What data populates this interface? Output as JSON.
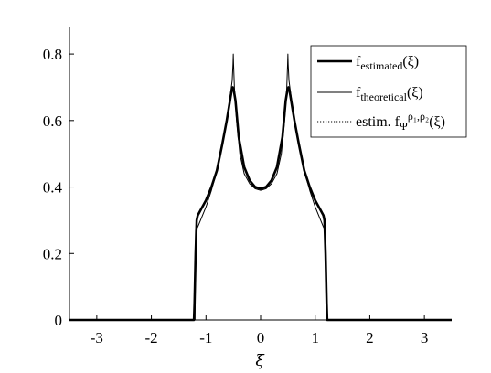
{
  "chart_data": {
    "type": "line",
    "xlabel": "ξ",
    "ylabel": "",
    "xlim": [
      -3.5,
      3.5
    ],
    "ylim": [
      0,
      0.88
    ],
    "xticks": [
      -3,
      -2,
      -1,
      0,
      1,
      2,
      3
    ],
    "xtick_labels": [
      "-3",
      "-2",
      "-1",
      "0",
      "1",
      "2",
      "3"
    ],
    "yticks": [
      0,
      0.2,
      0.4,
      0.6,
      0.8
    ],
    "ytick_labels": [
      "0",
      "0.2",
      "0.4",
      "0.6",
      "0.8"
    ],
    "grid": false,
    "legend_position": "top-right",
    "legend": {
      "estimated": {
        "main": "f",
        "sub": "estimated",
        "arg": "(ξ)"
      },
      "theoretical": {
        "main": "f",
        "sub": "theoretical",
        "arg": "(ξ)"
      },
      "estim_psi": {
        "prefix": "estim. f",
        "sub": "Ψ",
        "sup": "ρ₁,ρ₂",
        "arg": "(ξ)"
      }
    },
    "series": [
      {
        "key": "estimated",
        "style": "thick-solid",
        "x": [
          -3.5,
          -1.22,
          -1.21,
          -1.19,
          -1.17,
          -1.15,
          -1.1,
          -1.0,
          -0.9,
          -0.8,
          -0.7,
          -0.62,
          -0.56,
          -0.53,
          -0.51,
          -0.49,
          -0.46,
          -0.4,
          -0.3,
          -0.2,
          -0.1,
          0,
          0.1,
          0.2,
          0.3,
          0.4,
          0.46,
          0.49,
          0.51,
          0.53,
          0.56,
          0.62,
          0.7,
          0.8,
          0.9,
          1.0,
          1.1,
          1.15,
          1.17,
          1.19,
          1.21,
          1.22,
          3.5
        ],
        "y": [
          0,
          0,
          0.05,
          0.2,
          0.3,
          0.315,
          0.33,
          0.36,
          0.4,
          0.45,
          0.53,
          0.6,
          0.66,
          0.69,
          0.7,
          0.69,
          0.66,
          0.55,
          0.46,
          0.42,
          0.4,
          0.395,
          0.4,
          0.42,
          0.46,
          0.55,
          0.66,
          0.69,
          0.7,
          0.69,
          0.66,
          0.6,
          0.53,
          0.45,
          0.4,
          0.36,
          0.33,
          0.315,
          0.3,
          0.2,
          0.05,
          0,
          0
        ]
      },
      {
        "key": "theoretical",
        "style": "thin-solid",
        "x": [
          -3.5,
          -1.2,
          -1.19,
          -1.15,
          -1.1,
          -1.0,
          -0.9,
          -0.8,
          -0.7,
          -0.62,
          -0.56,
          -0.52,
          -0.505,
          -0.5,
          -0.495,
          -0.48,
          -0.44,
          -0.38,
          -0.3,
          -0.2,
          -0.1,
          0,
          0.1,
          0.2,
          0.3,
          0.38,
          0.44,
          0.48,
          0.495,
          0.5,
          0.505,
          0.52,
          0.56,
          0.62,
          0.7,
          0.8,
          0.9,
          1.0,
          1.1,
          1.15,
          1.19,
          1.2,
          3.5
        ],
        "y": [
          0,
          0,
          0.27,
          0.28,
          0.3,
          0.34,
          0.39,
          0.45,
          0.53,
          0.6,
          0.67,
          0.72,
          0.77,
          0.8,
          0.77,
          0.7,
          0.6,
          0.5,
          0.44,
          0.41,
          0.395,
          0.39,
          0.395,
          0.41,
          0.44,
          0.5,
          0.6,
          0.7,
          0.77,
          0.8,
          0.77,
          0.72,
          0.67,
          0.6,
          0.53,
          0.45,
          0.39,
          0.34,
          0.3,
          0.28,
          0.27,
          0,
          0
        ]
      },
      {
        "key": "estim_psi",
        "style": "dotted",
        "x": [
          -3.5,
          -1.21,
          -1.2,
          -1.18,
          -1.15,
          -1.1,
          -1.0,
          -0.9,
          -0.8,
          -0.7,
          -0.62,
          -0.56,
          -0.53,
          -0.51,
          -0.49,
          -0.46,
          -0.4,
          -0.3,
          -0.2,
          -0.1,
          0,
          0.1,
          0.2,
          0.3,
          0.4,
          0.46,
          0.49,
          0.51,
          0.53,
          0.56,
          0.62,
          0.7,
          0.8,
          0.9,
          1.0,
          1.1,
          1.15,
          1.18,
          1.2,
          1.21,
          3.5
        ],
        "y": [
          0,
          0,
          0.1,
          0.29,
          0.31,
          0.33,
          0.36,
          0.4,
          0.45,
          0.53,
          0.6,
          0.66,
          0.69,
          0.7,
          0.69,
          0.66,
          0.55,
          0.46,
          0.42,
          0.4,
          0.395,
          0.4,
          0.42,
          0.46,
          0.55,
          0.66,
          0.69,
          0.7,
          0.69,
          0.66,
          0.6,
          0.53,
          0.45,
          0.4,
          0.36,
          0.33,
          0.31,
          0.29,
          0.1,
          0,
          0
        ]
      }
    ]
  }
}
